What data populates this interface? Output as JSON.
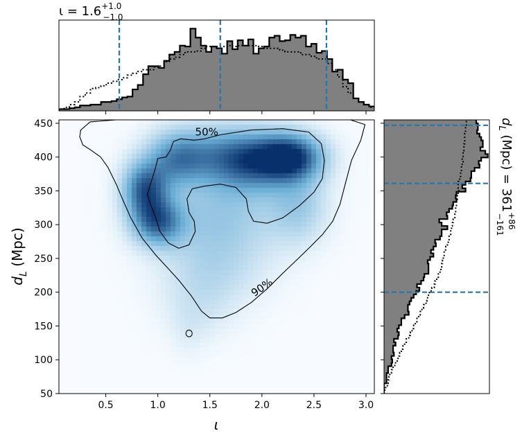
{
  "chart_data": [
    {
      "type": "heatmap",
      "panel": "joint",
      "xlabel": "ι",
      "ylabel_main": "d",
      "ylabel_sub": "L",
      "ylabel_unit": " (Mpc)",
      "xlim": [
        0.05,
        3.08
      ],
      "ylim": [
        50,
        455
      ],
      "xticks": [
        0.5,
        1.0,
        1.5,
        2.0,
        2.5,
        3.0
      ],
      "xtick_labels": [
        "0.5",
        "1.0",
        "1.5",
        "2.0",
        "2.5",
        "3.0"
      ],
      "yticks": [
        50,
        100,
        150,
        200,
        250,
        300,
        350,
        400,
        450
      ],
      "ytick_labels": [
        "50",
        "100",
        "150",
        "200",
        "250",
        "300",
        "350",
        "400",
        "450"
      ],
      "colormap": "Blues",
      "density_blobs": [
        {
          "x": 2.27,
          "y": 400,
          "sx": 0.22,
          "sy": 24,
          "w": 1.0
        },
        {
          "x": 1.9,
          "y": 392,
          "sx": 0.25,
          "sy": 30,
          "w": 0.55
        },
        {
          "x": 0.88,
          "y": 352,
          "sx": 0.15,
          "sy": 28,
          "w": 0.8
        },
        {
          "x": 1.0,
          "y": 303,
          "sx": 0.17,
          "sy": 24,
          "w": 0.72
        },
        {
          "x": 1.18,
          "y": 398,
          "sx": 0.2,
          "sy": 28,
          "w": 0.55
        },
        {
          "x": 1.6,
          "y": 405,
          "sx": 0.3,
          "sy": 30,
          "w": 0.45
        },
        {
          "x": 1.6,
          "y": 320,
          "sx": 0.4,
          "sy": 45,
          "w": 0.32
        },
        {
          "x": 2.35,
          "y": 330,
          "sx": 0.2,
          "sy": 40,
          "w": 0.3
        },
        {
          "x": 1.55,
          "y": 240,
          "sx": 0.35,
          "sy": 40,
          "w": 0.2
        },
        {
          "x": 1.4,
          "y": 180,
          "sx": 0.25,
          "sy": 35,
          "w": 0.12
        },
        {
          "x": 1.3,
          "y": 140,
          "sx": 0.12,
          "sy": 25,
          "w": 0.06
        }
      ],
      "contours": [
        {
          "label": "50%",
          "label_at": [
            1.47,
            437
          ],
          "outer": [
            [
              1.0,
              398
            ],
            [
              0.97,
              380
            ],
            [
              0.95,
              370
            ],
            [
              0.93,
              360
            ],
            [
              0.9,
              345
            ],
            [
              0.93,
              330
            ],
            [
              0.98,
              310
            ],
            [
              1.02,
              290
            ],
            [
              1.1,
              273
            ],
            [
              1.2,
              265
            ],
            [
              1.3,
              270
            ],
            [
              1.36,
              290
            ],
            [
              1.35,
              305
            ],
            [
              1.3,
              318
            ],
            [
              1.28,
              338
            ],
            [
              1.33,
              353
            ],
            [
              1.45,
              357
            ],
            [
              1.6,
              360
            ],
            [
              1.75,
              355
            ],
            [
              1.85,
              338
            ],
            [
              1.87,
              320
            ],
            [
              1.92,
              305
            ],
            [
              2.05,
              302
            ],
            [
              2.2,
              310
            ],
            [
              2.36,
              328
            ],
            [
              2.5,
              348
            ],
            [
              2.58,
              368
            ],
            [
              2.6,
              395
            ],
            [
              2.57,
              420
            ],
            [
              2.45,
              437
            ],
            [
              2.2,
              442
            ],
            [
              1.9,
              440
            ],
            [
              1.6,
              433
            ],
            [
              1.45,
              427
            ],
            [
              1.35,
              425
            ],
            [
              1.22,
              427
            ],
            [
              1.15,
              423
            ],
            [
              1.12,
              410
            ],
            [
              1.08,
              400
            ]
          ],
          "inner": [
            [
              1.38,
              318
            ],
            [
              1.45,
              338
            ],
            [
              1.58,
              355
            ],
            [
              1.72,
              360
            ],
            [
              1.82,
              345
            ],
            [
              1.88,
              328
            ],
            [
              1.95,
              320
            ],
            [
              2.05,
              320
            ],
            [
              2.15,
              328
            ],
            [
              2.3,
              340
            ],
            [
              2.45,
              355
            ],
            [
              2.54,
              370
            ],
            [
              2.56,
              392
            ],
            [
              2.52,
              410
            ],
            [
              2.45,
              425
            ],
            [
              2.2,
              432
            ],
            [
              1.9,
              430
            ],
            [
              1.6,
              424
            ],
            [
              1.45,
              420
            ],
            [
              1.32,
              418
            ],
            [
              1.2,
              415
            ],
            [
              1.14,
              405
            ],
            [
              1.08,
              395
            ],
            [
              1.05,
              380
            ],
            [
              1.04,
              365
            ],
            [
              1.08,
              340
            ],
            [
              1.15,
              318
            ],
            [
              1.25,
              300
            ],
            [
              1.33,
              300
            ]
          ]
        },
        {
          "label": "90%",
          "label_at": [
            2.0,
            207
          ],
          "points": [
            [
              0.26,
              440
            ],
            [
              0.25,
              430
            ],
            [
              0.28,
              418
            ],
            [
              0.36,
              410
            ],
            [
              0.45,
              400
            ],
            [
              0.52,
              385
            ],
            [
              0.6,
              360
            ],
            [
              0.66,
              338
            ],
            [
              0.74,
              310
            ],
            [
              0.85,
              280
            ],
            [
              0.98,
              255
            ],
            [
              1.1,
              235
            ],
            [
              1.2,
              218
            ],
            [
              1.32,
              195
            ],
            [
              1.42,
              172
            ],
            [
              1.5,
              162
            ],
            [
              1.62,
              162
            ],
            [
              1.75,
              170
            ],
            [
              1.9,
              185
            ],
            [
              2.05,
              205
            ],
            [
              2.2,
              228
            ],
            [
              2.35,
              250
            ],
            [
              2.47,
              268
            ],
            [
              2.58,
              285
            ],
            [
              2.68,
              305
            ],
            [
              2.75,
              330
            ],
            [
              2.8,
              360
            ],
            [
              2.86,
              395
            ],
            [
              2.95,
              425
            ],
            [
              2.99,
              448
            ],
            [
              2.85,
              455
            ],
            [
              2.5,
              458
            ],
            [
              2.0,
              458
            ],
            [
              1.5,
              455
            ],
            [
              1.0,
              455
            ],
            [
              0.6,
              455
            ],
            [
              0.35,
              452
            ]
          ]
        },
        {
          "label": "",
          "ellipse": {
            "x": 1.3,
            "y": 139,
            "rx": 0.03,
            "ry": 5
          }
        }
      ]
    },
    {
      "type": "histogram",
      "panel": "top-marginal",
      "title_main": "ι = 1.6",
      "title_sup": "+1.0",
      "title_sub": "−1.0",
      "xlim": [
        0.05,
        3.08
      ],
      "bin_edges_range": [
        0.05,
        3.08
      ],
      "bins": 60,
      "filled_values": [
        2,
        2,
        3,
        4,
        6,
        6,
        7,
        7,
        10,
        10,
        11,
        13,
        15,
        16,
        24,
        29,
        41,
        50,
        50,
        48,
        56,
        63,
        66,
        73,
        72,
        92,
        82,
        73,
        66,
        72,
        70,
        64,
        78,
        69,
        79,
        73,
        80,
        64,
        70,
        72,
        82,
        84,
        78,
        79,
        85,
        82,
        84,
        72,
        75,
        65,
        67,
        58,
        44,
        46,
        35,
        31,
        14,
        10,
        7,
        5
      ],
      "dotted_values": [
        2,
        4,
        7,
        10,
        16,
        20,
        25,
        26,
        28,
        31,
        33,
        35,
        37,
        40,
        42,
        44,
        46,
        46,
        49,
        50,
        55,
        58,
        60,
        63,
        66,
        66,
        67,
        70,
        72,
        72,
        72,
        72,
        73,
        72,
        73,
        73,
        73,
        73,
        72,
        70,
        70,
        70,
        68,
        66,
        66,
        66,
        63,
        63,
        61,
        58,
        58,
        53,
        46,
        38,
        27,
        20,
        14,
        10,
        7,
        4
      ],
      "quantile_lines": [
        0.63,
        1.6,
        2.62
      ]
    },
    {
      "type": "histogram",
      "panel": "right-marginal",
      "orientation": "horizontal",
      "ylim": [
        50,
        455
      ],
      "bins": 80,
      "bin_range": [
        50,
        455
      ],
      "filled_values": [
        0,
        0,
        0,
        3,
        3,
        3,
        5,
        5,
        9,
        10,
        9,
        12,
        11,
        11,
        14,
        12,
        17,
        18,
        16,
        18,
        21,
        21,
        25,
        30,
        29,
        29,
        31,
        33,
        36,
        39,
        43,
        40,
        45,
        48,
        49,
        54,
        54,
        54,
        53,
        56,
        60,
        57,
        60,
        63,
        62,
        68,
        70,
        70,
        77,
        70,
        67,
        77,
        76,
        79,
        83,
        84,
        88,
        87,
        88,
        99,
        95,
        99,
        105,
        106,
        106,
        110,
        116,
        115,
        118,
        126,
        123,
        117,
        120,
        120,
        118,
        116,
        113,
        114,
        114,
        112
      ],
      "dotted_values": [
        0,
        2,
        4,
        5,
        6,
        7,
        9,
        11,
        13,
        16,
        17,
        19,
        21,
        23,
        25,
        27,
        30,
        32,
        34,
        36,
        38,
        40,
        42,
        44,
        46,
        48,
        51,
        52,
        54,
        55,
        58,
        61,
        62,
        64,
        66,
        68,
        69,
        70,
        71,
        72,
        73,
        73,
        75,
        77,
        78,
        79,
        81,
        81,
        82,
        83,
        84,
        86,
        86,
        87,
        87,
        88,
        89,
        89,
        90,
        91,
        90,
        90,
        92,
        93,
        93,
        94,
        94,
        96,
        95,
        96,
        96,
        97,
        97,
        98,
        98,
        98,
        99,
        99,
        100,
        100
      ],
      "quantile_lines": [
        200,
        361,
        447
      ],
      "label_main": "d",
      "label_sub": "L",
      "label_rest": " (Mpc) = 361",
      "label_sup": "+86",
      "label_sub2": "−161"
    }
  ],
  "colors": {
    "hist_fill": "#808080",
    "hist_edge": "#000000",
    "quantile_line": "#1f77b4",
    "contour": "#000000",
    "colormap_light": "#f7fbff",
    "colormap_dark": "#08306b"
  }
}
